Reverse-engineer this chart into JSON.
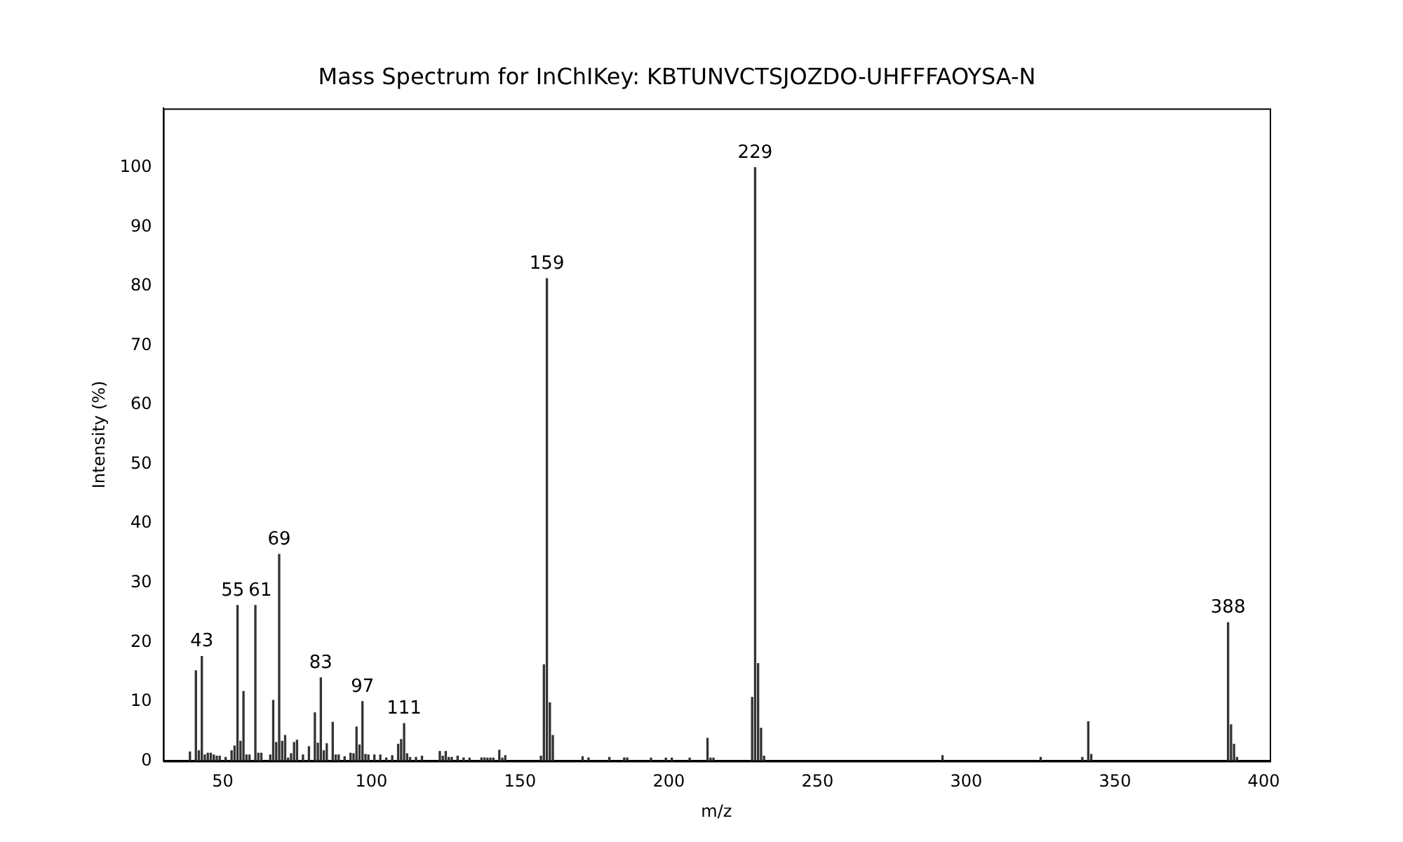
{
  "chart_data": {
    "type": "bar",
    "title": "Mass Spectrum for InChIKey: KBTUNVCTSJOZDO-UHFFFAOYSA-N",
    "xlabel": "m/z",
    "ylabel": "Intensity (%)",
    "color": "#333333",
    "x": [
      39,
      41,
      42,
      43,
      44,
      45,
      46,
      47,
      48,
      49,
      51,
      53,
      54,
      55,
      56,
      57,
      58,
      59,
      61,
      62,
      63,
      66,
      67,
      68,
      69,
      70,
      71,
      72,
      73,
      74,
      75,
      77,
      79,
      81,
      82,
      83,
      84,
      85,
      87,
      88,
      89,
      91,
      93,
      94,
      95,
      96,
      97,
      98,
      99,
      101,
      103,
      105,
      107,
      109,
      110,
      111,
      112,
      113,
      115,
      117,
      123,
      124,
      125,
      126,
      127,
      129,
      131,
      133,
      137,
      138,
      139,
      140,
      141,
      143,
      144,
      145,
      157,
      158,
      159,
      160,
      161,
      171,
      173,
      180,
      185,
      186,
      194,
      199,
      201,
      207,
      213,
      214,
      215,
      228,
      229,
      230,
      231,
      232,
      292,
      325,
      339,
      341,
      342,
      388,
      389,
      390,
      391
    ],
    "values": [
      1.5,
      15.2,
      1.7,
      17.6,
      1,
      1.3,
      1.3,
      1,
      0.8,
      0.8,
      0.6,
      1.7,
      2.5,
      26.2,
      3.3,
      11.7,
      1,
      1,
      26.2,
      1.3,
      1.3,
      1,
      10.2,
      3.1,
      34.8,
      3.3,
      4.3,
      0.3,
      1.2,
      3.1,
      3.5,
      1,
      2.4,
      8.1,
      3,
      14,
      1.7,
      2.9,
      6.5,
      1,
      1,
      0.7,
      1.3,
      1.2,
      5.7,
      2.7,
      10,
      1.1,
      1,
      1,
      1,
      0.5,
      0.9,
      2.8,
      3.6,
      6.3,
      1.2,
      0.6,
      0.6,
      0.8,
      1.6,
      0.8,
      1.6,
      0.6,
      0.6,
      0.8,
      0.5,
      0.3,
      0.5,
      0.5,
      0.3,
      0.3,
      0.3,
      1.8,
      0.4,
      0.9,
      0.8,
      16.2,
      81.3,
      9.8,
      4.3,
      0.7,
      0.5,
      0.6,
      0.5,
      0.5,
      0.3,
      0.2,
      0.2,
      0.2,
      3.8,
      0.2,
      0.2,
      10.7,
      100,
      16.4,
      5.5,
      0.8,
      0.9,
      0.6,
      0.6,
      6.6,
      1.1,
      23.3,
      6.1,
      2.8,
      0.6
    ],
    "annotations": [
      {
        "text": "43",
        "x": 43,
        "y": 17.6
      },
      {
        "text": "55",
        "x": 55,
        "y": 26.2
      },
      {
        "text": "61",
        "x": 61,
        "y": 26.2
      },
      {
        "text": "69",
        "x": 69,
        "y": 34.8
      },
      {
        "text": "83",
        "x": 83,
        "y": 14
      },
      {
        "text": "97",
        "x": 97,
        "y": 10
      },
      {
        "text": "111",
        "x": 111,
        "y": 6.3
      },
      {
        "text": "159",
        "x": 159,
        "y": 81.3
      },
      {
        "text": "229",
        "x": 229,
        "y": 100
      },
      {
        "text": "388",
        "x": 388,
        "y": 23.3
      }
    ],
    "xlim": [
      30,
      402
    ],
    "xticks": [
      50,
      100,
      150,
      200,
      250,
      300,
      350,
      400
    ],
    "ylim": [
      0,
      110
    ],
    "yticks": [
      0,
      10,
      20,
      30,
      40,
      50,
      60,
      70,
      80,
      90,
      100
    ]
  }
}
